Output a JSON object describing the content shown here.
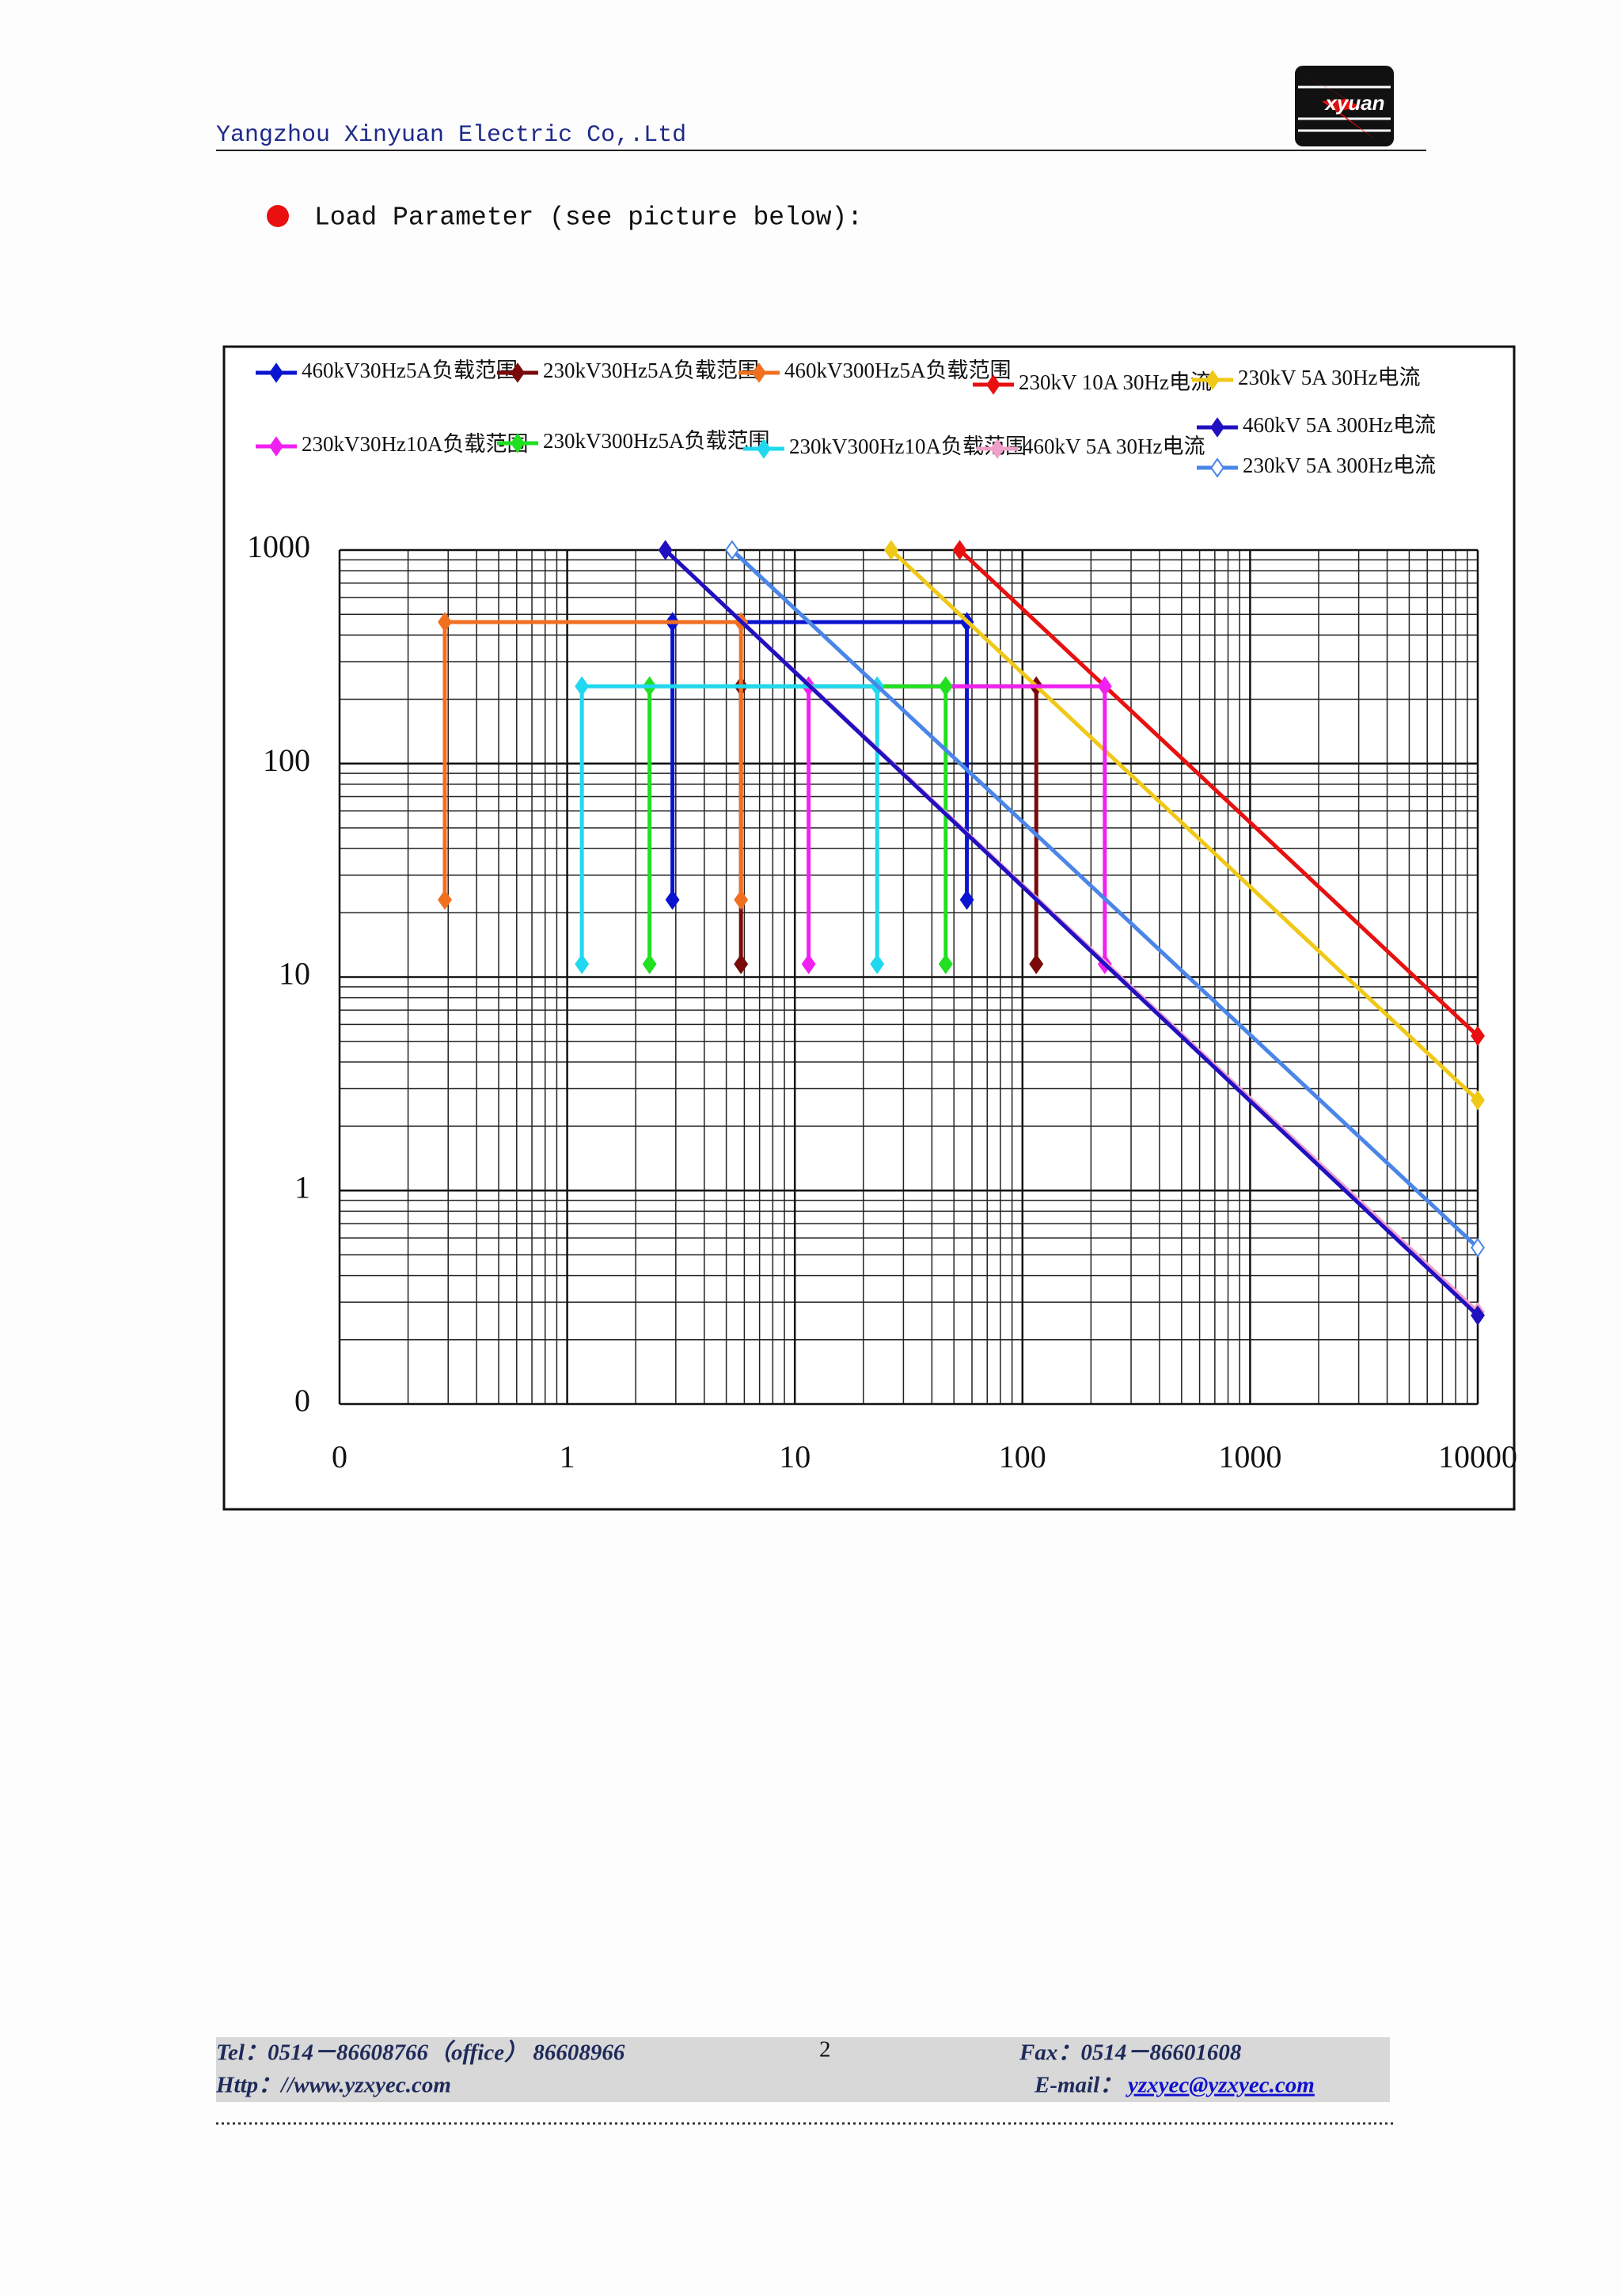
{
  "header": {
    "company": "Yangzhou Xinyuan Electric Co,.Ltd",
    "logo_text": "xyuan"
  },
  "bullet": "Load Parameter (see picture below):",
  "chart_data": {
    "type": "line",
    "xscale": "log",
    "yscale": "log",
    "grid": true,
    "xlim": [
      0.1,
      10000
    ],
    "ylim": [
      0.1,
      1000
    ],
    "xticks": [
      {
        "value": 0.1,
        "label": "0"
      },
      1,
      10,
      100,
      1000,
      10000
    ],
    "yticks": [
      {
        "value": 0.1,
        "label": "0"
      },
      1,
      10,
      100,
      1000
    ],
    "series": [
      {
        "name": "460kV30Hz5A负载范围",
        "color": "#0a14d0",
        "marker": "diamond",
        "x": [
          2.9,
          2.9,
          57,
          57
        ],
        "values": [
          23,
          460,
          460,
          23
        ]
      },
      {
        "name": "230kV30Hz5A负载范围",
        "color": "#7a0a0a",
        "marker": "diamond",
        "x": [
          5.8,
          5.8,
          115,
          115
        ],
        "values": [
          11.5,
          230,
          230,
          11.5
        ]
      },
      {
        "name": "460kV300Hz5A负载范围",
        "color": "#f07020",
        "marker": "diamond",
        "x": [
          0.29,
          0.29,
          5.8,
          5.8
        ],
        "values": [
          23,
          460,
          460,
          23
        ]
      },
      {
        "name": "230kV 10A 30Hz电流",
        "color": "#e81010",
        "marker": "diamond",
        "x": [
          53,
          10000
        ],
        "values": [
          1000,
          5.3
        ]
      },
      {
        "name": "230kV  5A 30Hz电流",
        "color": "#f0c818",
        "marker": "diamond",
        "x": [
          26.5,
          10000
        ],
        "values": [
          1000,
          2.65
        ]
      },
      {
        "name": "230kV30Hz10A负载范围",
        "color": "#f020f0",
        "marker": "diamond",
        "x": [
          11.5,
          11.5,
          230,
          230
        ],
        "values": [
          11.5,
          230,
          230,
          11.5
        ]
      },
      {
        "name": "230kV300Hz5A负载范围",
        "color": "#20e020",
        "marker": "diamond",
        "x": [
          2.3,
          2.3,
          46,
          46
        ],
        "values": [
          11.5,
          230,
          230,
          11.5
        ]
      },
      {
        "name": "230kV300Hz10A负载范围",
        "color": "#20d8f0",
        "marker": "diamond",
        "x": [
          1.16,
          1.16,
          23,
          23
        ],
        "values": [
          11.5,
          230,
          230,
          11.5
        ]
      },
      {
        "name": "460kV  5A 30Hz电流",
        "color": "#f0a0c8",
        "marker": "diamond",
        "x": [
          2.7,
          10000
        ],
        "values": [
          1000,
          0.27
        ]
      },
      {
        "name": "460kV 5A 300Hz电流",
        "color": "#2010c0",
        "marker": "diamond",
        "x": [
          2.7,
          10000
        ],
        "values": [
          1000,
          0.26
        ]
      },
      {
        "name": "230kV 5A 300Hz电流",
        "color": "#4a86e8",
        "marker": "open-diamond",
        "x": [
          5.3,
          10000
        ],
        "values": [
          1000,
          0.54
        ]
      }
    ]
  },
  "footer": {
    "tel": "Tel：0514－86608766（office） 86608966",
    "page": "2",
    "fax": "Fax：0514－86601608",
    "http": "Http：//www.yzxyec.com",
    "email_label": "E-mail：",
    "email": "yzxyec@yzxyec.com"
  }
}
